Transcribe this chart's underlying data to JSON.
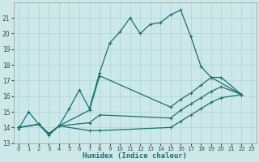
{
  "xlabel": "Humidex (Indice chaleur)",
  "xlim": [
    -0.5,
    23.5
  ],
  "ylim": [
    13,
    22
  ],
  "yticks": [
    13,
    14,
    15,
    16,
    17,
    18,
    19,
    20,
    21
  ],
  "xticks": [
    0,
    1,
    2,
    3,
    4,
    5,
    6,
    7,
    8,
    9,
    10,
    11,
    12,
    13,
    14,
    15,
    16,
    17,
    18,
    19,
    20,
    21,
    22,
    23
  ],
  "bg_color": "#cce8e8",
  "grid_color": "#aad4d4",
  "line_color": "#1a7070",
  "series_main": {
    "x": [
      0,
      1,
      2,
      3,
      4,
      5,
      6,
      7,
      8,
      9,
      10,
      11,
      12,
      13,
      14,
      15,
      16,
      17,
      18,
      19,
      22
    ],
    "y": [
      13.9,
      15.0,
      14.2,
      13.5,
      14.1,
      15.2,
      16.4,
      15.2,
      17.5,
      19.4,
      20.1,
      21.0,
      20.0,
      20.6,
      20.7,
      21.2,
      21.5,
      19.8,
      17.9,
      17.2,
      16.1
    ]
  },
  "series_upper": {
    "x": [
      0,
      2,
      3,
      4,
      7,
      8,
      15,
      16,
      17,
      18,
      19,
      20,
      22
    ],
    "y": [
      14.0,
      14.2,
      13.6,
      14.1,
      15.1,
      17.3,
      15.3,
      15.8,
      16.2,
      16.7,
      17.2,
      17.2,
      16.1
    ]
  },
  "series_mid": {
    "x": [
      0,
      2,
      3,
      4,
      7,
      8,
      15,
      16,
      17,
      18,
      19,
      20,
      22
    ],
    "y": [
      14.0,
      14.2,
      13.6,
      14.1,
      14.3,
      14.8,
      14.6,
      15.1,
      15.5,
      15.9,
      16.3,
      16.6,
      16.1
    ]
  },
  "series_lower": {
    "x": [
      0,
      2,
      3,
      4,
      7,
      8,
      15,
      16,
      17,
      18,
      19,
      20,
      22
    ],
    "y": [
      14.0,
      14.2,
      13.6,
      14.1,
      13.8,
      13.8,
      14.0,
      14.4,
      14.8,
      15.2,
      15.6,
      15.9,
      16.1
    ]
  }
}
